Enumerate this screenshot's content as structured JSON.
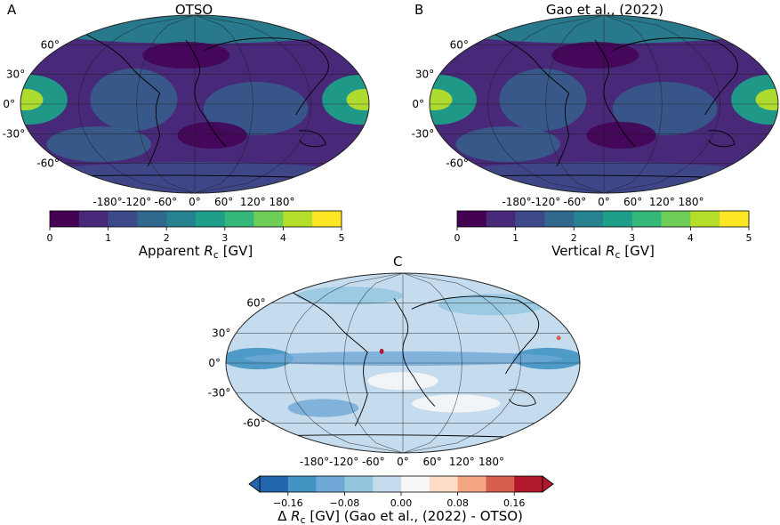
{
  "chart_data": [
    {
      "type": "heatmap",
      "panel": "A",
      "title": "OTSO",
      "projection": "robinson",
      "lat_ticks": [
        "60°",
        "30°",
        "0°",
        "-30°",
        "-60°"
      ],
      "lon_ticks": [
        "-180°",
        "-120°",
        "-60°",
        "0°",
        "60°",
        "120°",
        "180°"
      ],
      "colorbar": {
        "label_prefix": "Apparent ",
        "label_symbol": "R",
        "label_sub": "c",
        "label_unit": " [GV]",
        "range": [
          0,
          5
        ],
        "ticks": [
          "0",
          "1",
          "2",
          "3",
          "4",
          "5"
        ],
        "colormap": "viridis"
      }
    },
    {
      "type": "heatmap",
      "panel": "B",
      "title": "Gao et al., (2022)",
      "projection": "robinson",
      "lat_ticks": [
        "60°",
        "30°",
        "0°",
        "-30°",
        "-60°"
      ],
      "lon_ticks": [
        "-180°",
        "-120°",
        "-60°",
        "0°",
        "60°",
        "120°",
        "180°"
      ],
      "colorbar": {
        "label_prefix": "Vertical ",
        "label_symbol": "R",
        "label_sub": "c",
        "label_unit": " [GV]",
        "range": [
          0,
          5
        ],
        "ticks": [
          "0",
          "1",
          "2",
          "3",
          "4",
          "5"
        ],
        "colormap": "viridis"
      }
    },
    {
      "type": "heatmap",
      "panel": "C",
      "title": "",
      "projection": "robinson",
      "lat_ticks": [
        "60°",
        "30°",
        "0°",
        "-30°",
        "-60°"
      ],
      "lon_ticks": [
        "-180°",
        "-120°",
        "-60°",
        "0°",
        "60°",
        "120°",
        "180°"
      ],
      "colorbar": {
        "label_prefix": "Δ ",
        "label_symbol": "R",
        "label_sub": "c",
        "label_unit": " [GV] (Gao et al., (2022) - OTSO)",
        "range": [
          -0.2,
          0.2
        ],
        "extend": "both",
        "ticks": [
          "−0.16",
          "−0.08",
          "0.00",
          "0.08",
          "0.16"
        ],
        "tick_values": [
          -0.16,
          -0.08,
          0.0,
          0.08,
          0.16
        ],
        "colormap": "RdBu_r"
      }
    }
  ],
  "colors": {
    "viridis": [
      "#440154",
      "#482878",
      "#3e4989",
      "#31688e",
      "#26828e",
      "#1f9e89",
      "#35b779",
      "#6ece58",
      "#b5de2b",
      "#fde725"
    ],
    "diverging": [
      "#2166ac",
      "#4393c3",
      "#6fa8d6",
      "#92c5de",
      "#c4dcee",
      "#f7f7f7",
      "#fddbc7",
      "#f4a582",
      "#d6604d",
      "#b2182b"
    ]
  }
}
